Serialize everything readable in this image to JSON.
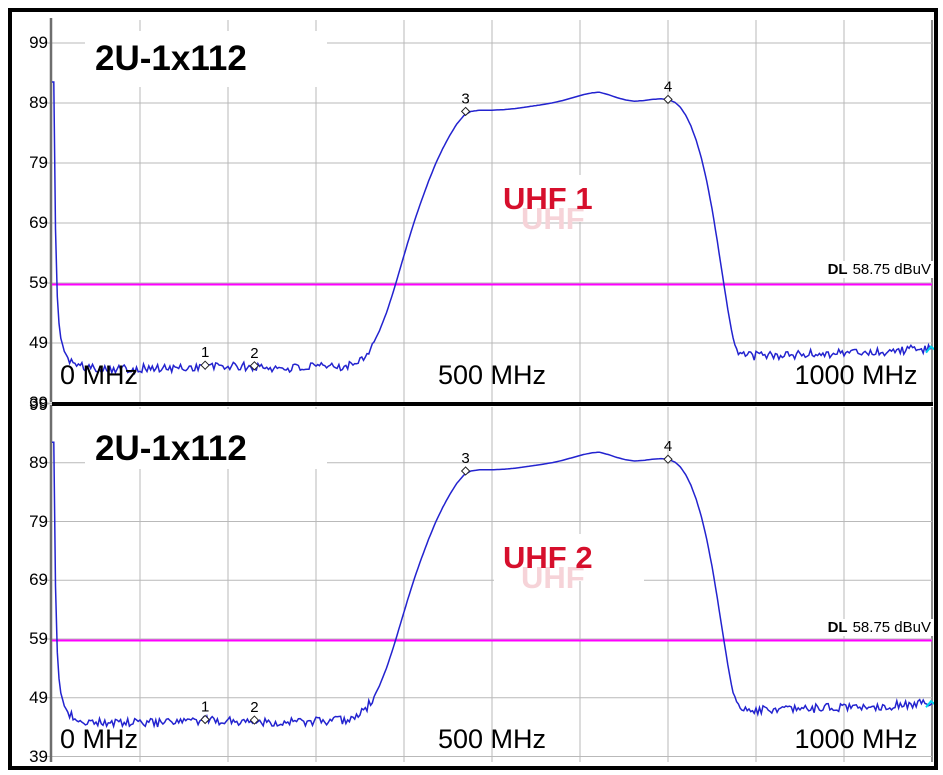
{
  "colors": {
    "trace": "#2323cf",
    "trace_end": "#00d4ee",
    "dl_line": "#ff00ff",
    "grid": "#b9b9b9",
    "axis": "#6e6e6e",
    "band_text": "#d60f2c",
    "band_ghost": "#f6d3d8",
    "frame": "#000000",
    "background": "#ffffff"
  },
  "plots": [
    {
      "title": "2U-1x112",
      "band_label": "UHF 1",
      "band_label_ghost": "UHF",
      "dl_prefix": "DL",
      "dl_value": "58.75 dBuV",
      "x_tick_labels": [
        "0 MHz",
        "500 MHz",
        "1000 MHz"
      ],
      "y_tick_labels": [
        "99",
        "89",
        "79",
        "69",
        "59",
        "49",
        "39"
      ]
    },
    {
      "title": "2U-1x112",
      "band_label": "UHF 2",
      "band_label_ghost": "UHF",
      "dl_prefix": "DL",
      "dl_value": "58.75 dBuV",
      "x_tick_labels": [
        "0 MHz",
        "500 MHz",
        "1000 MHz"
      ],
      "y_tick_labels": [
        "99",
        "89",
        "79",
        "69",
        "59",
        "49",
        "39"
      ]
    }
  ],
  "chart_data": {
    "type": "line",
    "grid": "on",
    "legend": "none",
    "x_unit": "MHz",
    "y_unit": "dBuV",
    "charts": [
      {
        "title": "2U-1x112",
        "series_label": "UHF 1",
        "xlim": [
          0,
          1000
        ],
        "ylim": [
          39,
          99
        ],
        "x_ticks": [
          0,
          500,
          1000
        ],
        "y_ticks": [
          99,
          89,
          79,
          69,
          59,
          49,
          39
        ],
        "dl_line": {
          "label": "DL 58.75 dBuV",
          "value_dbuv": 58.75
        },
        "markers": [
          {
            "label": "1",
            "mhz": 174,
            "dbuv": 45.3
          },
          {
            "label": "2",
            "mhz": 230,
            "dbuv": 45.2
          },
          {
            "label": "3",
            "mhz": 470,
            "dbuv": 87.6
          },
          {
            "label": "4",
            "mhz": 700,
            "dbuv": 89.6
          }
        ]
      },
      {
        "title": "2U-1x112",
        "series_label": "UHF 2",
        "xlim": [
          0,
          1000
        ],
        "ylim": [
          39,
          99
        ],
        "x_ticks": [
          0,
          500,
          1000
        ],
        "y_ticks": [
          99,
          89,
          79,
          69,
          59,
          49,
          39
        ],
        "dl_line": {
          "label": "DL 58.75 dBuV",
          "value_dbuv": 58.75
        },
        "markers": [
          {
            "label": "1",
            "mhz": 174,
            "dbuv": 45.3
          },
          {
            "label": "2",
            "mhz": 230,
            "dbuv": 45.2
          },
          {
            "label": "3",
            "mhz": 470,
            "dbuv": 87.6
          },
          {
            "label": "4",
            "mhz": 700,
            "dbuv": 89.6
          }
        ]
      }
    ],
    "response_points_mhz_dbuv": [
      [
        0,
        92.5
      ],
      [
        2,
        92.5
      ],
      [
        3.5,
        72
      ],
      [
        5,
        60
      ],
      [
        7,
        53.5
      ],
      [
        10,
        49.8
      ],
      [
        14,
        47.6
      ],
      [
        19,
        46.3
      ],
      [
        26,
        45.4
      ],
      [
        35,
        45.0
      ],
      [
        55,
        44.8
      ],
      [
        80,
        44.7
      ],
      [
        105,
        44.8
      ],
      [
        130,
        44.7
      ],
      [
        152,
        44.9
      ],
      [
        174,
        45.1
      ],
      [
        200,
        45.1
      ],
      [
        230,
        45.0
      ],
      [
        258,
        44.8
      ],
      [
        286,
        44.9
      ],
      [
        312,
        45.0
      ],
      [
        326,
        45.1
      ],
      [
        338,
        45.4
      ],
      [
        348,
        46.0
      ],
      [
        356,
        47.0
      ],
      [
        364,
        48.6
      ],
      [
        372,
        51.0
      ],
      [
        380,
        54.0
      ],
      [
        388,
        57.6
      ],
      [
        396,
        61.6
      ],
      [
        404,
        65.6
      ],
      [
        412,
        69.4
      ],
      [
        420,
        72.8
      ],
      [
        428,
        76.0
      ],
      [
        436,
        78.9
      ],
      [
        444,
        81.4
      ],
      [
        452,
        83.6
      ],
      [
        460,
        85.5
      ],
      [
        468,
        86.9
      ],
      [
        476,
        87.6
      ],
      [
        486,
        87.8
      ],
      [
        500,
        87.8
      ],
      [
        514,
        87.9
      ],
      [
        528,
        88.1
      ],
      [
        542,
        88.4
      ],
      [
        556,
        88.7
      ],
      [
        568,
        89.0
      ],
      [
        580,
        89.4
      ],
      [
        592,
        89.9
      ],
      [
        604,
        90.4
      ],
      [
        614,
        90.7
      ],
      [
        622,
        90.8
      ],
      [
        632,
        90.4
      ],
      [
        642,
        89.9
      ],
      [
        652,
        89.5
      ],
      [
        662,
        89.3
      ],
      [
        672,
        89.4
      ],
      [
        682,
        89.6
      ],
      [
        692,
        89.7
      ],
      [
        700,
        89.6
      ],
      [
        708,
        89.1
      ],
      [
        714,
        88.3
      ],
      [
        720,
        87.0
      ],
      [
        726,
        85.2
      ],
      [
        732,
        82.8
      ],
      [
        738,
        79.8
      ],
      [
        744,
        76.0
      ],
      [
        750,
        71.4
      ],
      [
        756,
        66.0
      ],
      [
        762,
        60.2
      ],
      [
        768,
        54.6
      ],
      [
        773,
        50.4
      ],
      [
        777,
        48.2
      ],
      [
        782,
        47.2
      ],
      [
        790,
        46.9
      ],
      [
        805,
        46.9
      ],
      [
        820,
        47.0
      ],
      [
        836,
        46.9
      ],
      [
        852,
        47.1
      ],
      [
        868,
        47.2
      ],
      [
        884,
        47.3
      ],
      [
        900,
        47.4
      ],
      [
        916,
        47.5
      ],
      [
        932,
        47.4
      ],
      [
        948,
        47.6
      ],
      [
        964,
        47.8
      ],
      [
        980,
        48.0
      ],
      [
        1000,
        47.9
      ]
    ]
  }
}
